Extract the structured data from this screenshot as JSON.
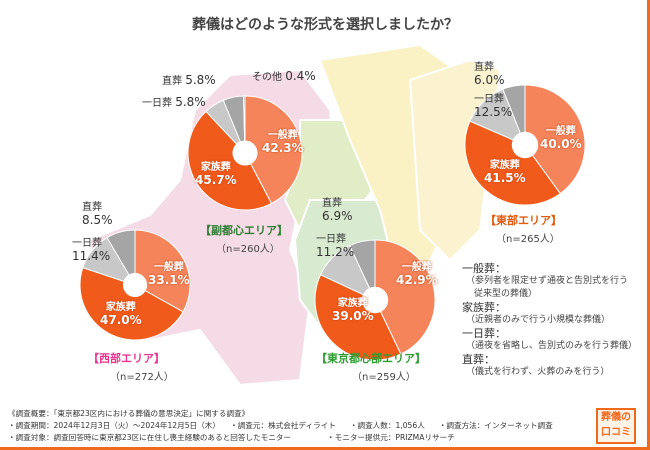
{
  "title": "葬儀はどのような形式を選択しましたか？",
  "colors": {
    "一般葬": "#f5845a",
    "家族葬": "#f05a1a",
    "一日葬": "#c8c8c8",
    "直葬": "#a5a5a5",
    "その他": "#7a7a7a"
  },
  "chart_data": [
    {
      "type": "pie",
      "name": "副都心エリア",
      "n": "（n=260人）",
      "categories": [
        "一般葬",
        "家族葬",
        "一日葬",
        "直葬",
        "その他"
      ],
      "values": [
        42.3,
        45.7,
        5.8,
        5.8,
        0.4
      ],
      "labels": [
        "42.3%",
        "45.7%",
        "5.8%",
        "5.8%",
        "0.4%"
      ],
      "color": "#2e7d32"
    },
    {
      "type": "pie",
      "name": "東部エリア",
      "n": "（n=265人）",
      "categories": [
        "一般葬",
        "家族葬",
        "一日葬",
        "直葬"
      ],
      "values": [
        40.0,
        41.5,
        12.5,
        6.0
      ],
      "labels": [
        "40.0%",
        "41.5%",
        "12.5%",
        "6.0%"
      ],
      "color": "#e05a10"
    },
    {
      "type": "pie",
      "name": "西部エリア",
      "n": "（n=272人）",
      "categories": [
        "一般葬",
        "家族葬",
        "一日葬",
        "直葬"
      ],
      "values": [
        33.1,
        47.0,
        11.4,
        8.5
      ],
      "labels": [
        "33.1%",
        "47.0%",
        "11.4%",
        "8.5%"
      ],
      "color": "#e8368f"
    },
    {
      "type": "pie",
      "name": "東京都心部エリア",
      "n": "（n=259人）",
      "categories": [
        "一般葬",
        "家族葬",
        "一日葬",
        "直葬"
      ],
      "values": [
        42.9,
        39.0,
        11.2,
        6.9
      ],
      "labels": [
        "42.9%",
        "39.0%",
        "11.2%",
        "6.9%"
      ],
      "color": "#2e9d32"
    }
  ],
  "legend": [
    {
      "term": "一般葬：",
      "desc": "（参列者を限定せず通夜と告別式を行う",
      "desc2": "従来型の葬儀）"
    },
    {
      "term": "家族葬：",
      "desc": "（近親者のみで行う小規模な葬儀）"
    },
    {
      "term": "一日葬：",
      "desc": "（通夜を省略し、告別式のみを行う葬儀）"
    },
    {
      "term": "直葬：",
      "desc": "（儀式を行わず、火葬のみを行う）"
    }
  ],
  "footer": {
    "summary": "《調査概要：「東京都23区内における葬儀の意思決定」に関する調査》",
    "period": "・調査期間：2024年12月3日（火）～2024年12月5日（木）",
    "source": "・調査元：株式会社ディライト",
    "count": "・調査人数：1,056人",
    "method": "・調査方法：インターネット調査",
    "target": "・調査対象：調査回答時に東京都23区に在住し喪主経験のあると回答したモニター",
    "provider": "・モニター提供元：PRIZMAリサーチ"
  },
  "logo": {
    "line1": "葬儀の",
    "line2": "口コミ"
  }
}
